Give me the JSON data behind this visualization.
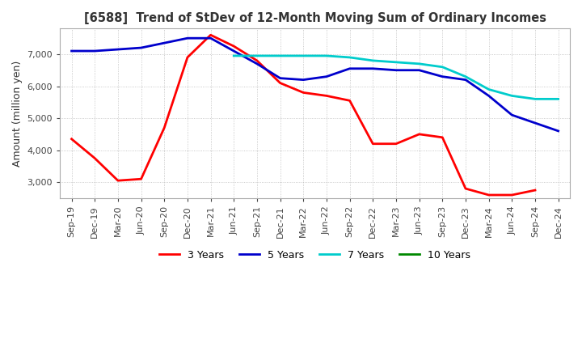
{
  "title": "[6588]  Trend of StDev of 12-Month Moving Sum of Ordinary Incomes",
  "ylabel": "Amount (million yen)",
  "background_color": "#ffffff",
  "grid_color": "#aaaaaa",
  "ylim": [
    2500,
    7800
  ],
  "yticks": [
    3000,
    4000,
    5000,
    6000,
    7000
  ],
  "x_labels": [
    "Sep-19",
    "Dec-19",
    "Mar-20",
    "Jun-20",
    "Sep-20",
    "Dec-20",
    "Mar-21",
    "Jun-21",
    "Sep-21",
    "Dec-21",
    "Mar-22",
    "Jun-22",
    "Sep-22",
    "Dec-22",
    "Mar-23",
    "Jun-23",
    "Sep-23",
    "Dec-23",
    "Mar-24",
    "Jun-24",
    "Sep-24",
    "Dec-24"
  ],
  "series": {
    "3 Years": {
      "color": "#ff0000",
      "data": [
        4350,
        3750,
        3050,
        3100,
        4700,
        6900,
        7600,
        7250,
        6800,
        6100,
        5800,
        5700,
        5550,
        4200,
        4200,
        4500,
        4400,
        2800,
        2600,
        2600,
        2750,
        null
      ]
    },
    "5 Years": {
      "color": "#0000cc",
      "data": [
        7100,
        7100,
        7150,
        7200,
        7350,
        7500,
        7500,
        7100,
        6700,
        6250,
        6200,
        6300,
        6550,
        6550,
        6500,
        6500,
        6300,
        6200,
        5700,
        5100,
        4850,
        4600
      ]
    },
    "7 Years": {
      "color": "#00cccc",
      "data": [
        null,
        null,
        null,
        null,
        null,
        null,
        null,
        6950,
        6950,
        6950,
        6950,
        6950,
        6900,
        6800,
        6750,
        6700,
        6600,
        6300,
        5900,
        5700,
        5600,
        5600
      ]
    },
    "10 Years": {
      "color": "#008800",
      "data": [
        null,
        null,
        null,
        null,
        null,
        null,
        null,
        null,
        null,
        null,
        null,
        null,
        null,
        null,
        null,
        null,
        null,
        null,
        null,
        null,
        null,
        null
      ]
    }
  }
}
